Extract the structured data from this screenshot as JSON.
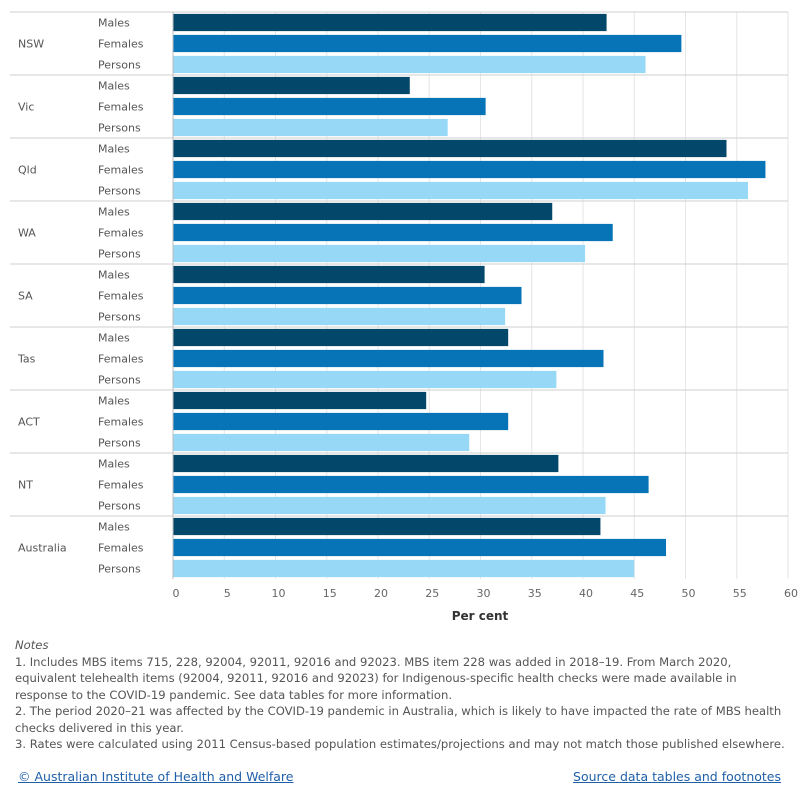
{
  "chart_data": {
    "type": "bar",
    "orientation": "horizontal",
    "groups": [
      "NSW",
      "Vic",
      "Qld",
      "WA",
      "SA",
      "Tas",
      "ACT",
      "NT",
      "Australia"
    ],
    "subcategories": [
      "Males",
      "Females",
      "Persons"
    ],
    "series": [
      {
        "name": "Males",
        "color": "#03486b",
        "values": [
          42.3,
          23.1,
          54.0,
          37.0,
          30.4,
          32.7,
          24.7,
          37.6,
          41.7
        ]
      },
      {
        "name": "Females",
        "color": "#0774b8",
        "values": [
          49.6,
          30.5,
          57.8,
          42.9,
          34.0,
          42.0,
          32.7,
          46.4,
          48.1
        ]
      },
      {
        "name": "Persons",
        "color": "#96d8f5",
        "values": [
          46.1,
          26.8,
          56.1,
          40.2,
          32.4,
          37.4,
          28.9,
          42.2,
          45.0
        ]
      }
    ],
    "x_ticks": [
      0,
      5,
      10,
      15,
      20,
      25,
      30,
      35,
      40,
      45,
      50,
      55,
      60
    ],
    "xlim": [
      0,
      60
    ],
    "xlabel": "Per cent",
    "grid": true
  },
  "notes": {
    "title": "Notes",
    "items": [
      "1. Includes MBS items 715, 228, 92004, 92011, 92016 and 92023. MBS item 228 was added in 2018–19. From March 2020, equivalent telehealth items (92004, 92011, 92016 and 92023) for Indigenous-specific health checks were made available in response to the COVID-19 pandemic. See data tables for more information.",
      "2. The period 2020–21 was affected by the COVID-19 pandemic in Australia, which is likely to have impacted the rate of MBS health checks delivered in this year.",
      "3. Rates were calculated using 2011 Census-based population estimates/projections and may not match those published elsewhere."
    ]
  },
  "footer": {
    "left_link": "© Australian Institute of Health and Welfare",
    "right_link": "Source data tables and footnotes"
  }
}
